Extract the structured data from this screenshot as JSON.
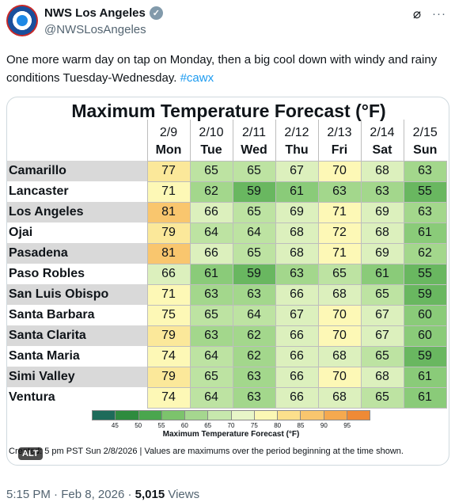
{
  "account": {
    "display_name": "NWS Los Angeles",
    "handle": "@NWSLosAngeles",
    "avatar_text": "NATIONAL WEATHER SERVICE",
    "verified_icon": "check-badge"
  },
  "post": {
    "text": "One more warm day on tap on Monday, then a big cool down with windy and rainy conditions Tuesday-Wednesday. ",
    "hashtag": "#cawx",
    "time": "5:15 PM",
    "date": "Feb 8, 2026",
    "views_count": "5,015",
    "views_label": "Views",
    "alt_badge": "ALT"
  },
  "chart_data": {
    "type": "table",
    "title": "Maximum Temperature Forecast (°F)",
    "dates": [
      "2/9",
      "2/10",
      "2/11",
      "2/12",
      "2/13",
      "2/14",
      "2/15"
    ],
    "days": [
      "Mon",
      "Tue",
      "Wed",
      "Thu",
      "Fri",
      "Sat",
      "Sun"
    ],
    "rows": [
      {
        "city": "Camarillo",
        "values": [
          77,
          65,
          65,
          67,
          70,
          68,
          63
        ]
      },
      {
        "city": "Lancaster",
        "values": [
          71,
          62,
          59,
          61,
          63,
          63,
          55
        ]
      },
      {
        "city": "Los Angeles",
        "values": [
          81,
          66,
          65,
          69,
          71,
          69,
          63
        ]
      },
      {
        "city": "Ojai",
        "values": [
          79,
          64,
          64,
          68,
          72,
          68,
          61
        ]
      },
      {
        "city": "Pasadena",
        "values": [
          81,
          66,
          65,
          68,
          71,
          69,
          62
        ]
      },
      {
        "city": "Paso Robles",
        "values": [
          66,
          61,
          59,
          63,
          65,
          61,
          55
        ]
      },
      {
        "city": "San Luis Obispo",
        "values": [
          71,
          63,
          63,
          66,
          68,
          65,
          59
        ]
      },
      {
        "city": "Santa Barbara",
        "values": [
          75,
          65,
          64,
          67,
          70,
          67,
          60
        ]
      },
      {
        "city": "Santa Clarita",
        "values": [
          79,
          63,
          62,
          66,
          70,
          67,
          60
        ]
      },
      {
        "city": "Santa Maria",
        "values": [
          74,
          64,
          62,
          66,
          68,
          65,
          59
        ]
      },
      {
        "city": "Simi Valley",
        "values": [
          79,
          65,
          63,
          66,
          70,
          68,
          61
        ]
      },
      {
        "city": "Ventura",
        "values": [
          74,
          64,
          63,
          66,
          68,
          65,
          61
        ]
      }
    ],
    "legend": {
      "title": "Maximum Temperature Forecast (°F)",
      "ticks": [
        "45",
        "50",
        "55",
        "60",
        "65",
        "70",
        "75",
        "80",
        "85",
        "90",
        "95"
      ],
      "colors": [
        "#1e6b5a",
        "#2e8b3e",
        "#4aa64e",
        "#7cc36c",
        "#a5d78f",
        "#c7e8ad",
        "#e8f6c8",
        "#fbf7b4",
        "#fce08c",
        "#f9c66e",
        "#f5a94f",
        "#ef8a36"
      ]
    },
    "footnote": "Created: 5 pm PST Sun 2/8/2026  |  Values are maximums over the period beginning at the time shown."
  }
}
